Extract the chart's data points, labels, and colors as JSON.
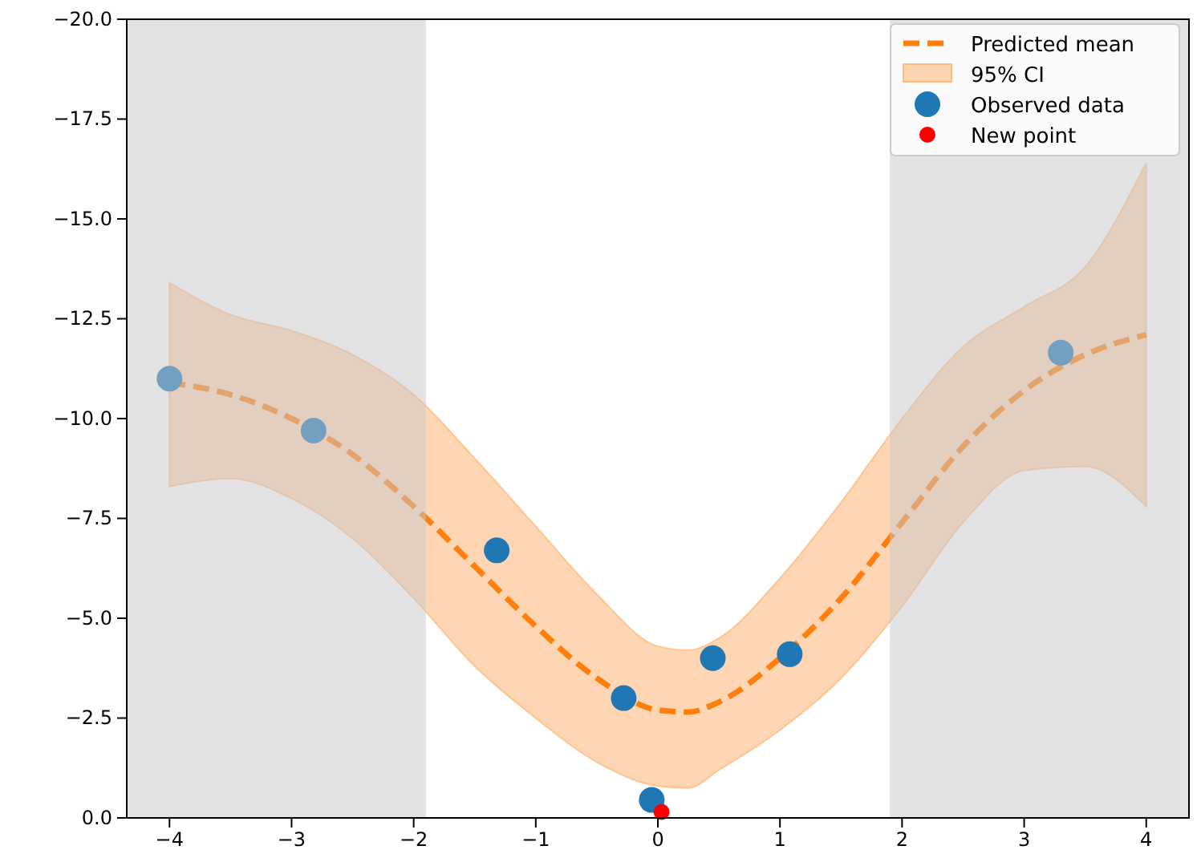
{
  "chart_data": {
    "type": "line",
    "xlim": [
      -4.35,
      4.35
    ],
    "ylim": [
      0,
      -20
    ],
    "xticks": [
      {
        "value": -4,
        "label": "−4"
      },
      {
        "value": -3,
        "label": "−3"
      },
      {
        "value": -2,
        "label": "−2"
      },
      {
        "value": -1,
        "label": "−1"
      },
      0,
      1,
      2,
      3,
      4
    ],
    "yticks": [
      {
        "value": 0,
        "label": "0.0"
      },
      {
        "value": -2.5,
        "label": "−2.5"
      },
      {
        "value": -5,
        "label": "−5.0"
      },
      {
        "value": -7.5,
        "label": "−7.5"
      },
      {
        "value": -10,
        "label": "−10.0"
      },
      {
        "value": -12.5,
        "label": "−12.5"
      },
      {
        "value": -15,
        "label": "−15.0"
      },
      {
        "value": -17.5,
        "label": "−17.5"
      },
      {
        "value": -20,
        "label": "−20.0"
      }
    ],
    "grid": false,
    "legend": "top right",
    "bands": [
      {
        "axis": "x",
        "from": -4.35,
        "to": -1.9,
        "color": "#c8c8cc"
      },
      {
        "axis": "x",
        "from": 1.9,
        "to": 4.35,
        "color": "#c8c8cc"
      }
    ],
    "series": [
      {
        "name": "Predicted mean",
        "color": "#ff7f0e",
        "line_style": "dashed",
        "marker": "none",
        "x": [
          -4,
          -3.5,
          -3,
          -2.5,
          -2,
          -1.5,
          -1,
          -0.5,
          0,
          0.25,
          0.5,
          1,
          1.5,
          2,
          2.5,
          3,
          3.5,
          4
        ],
        "values": [
          -10.9,
          -10.6,
          -10,
          -9.1,
          -7.8,
          -6.3,
          -4.8,
          -3.5,
          -2.7,
          -2.65,
          -2.9,
          -4,
          -5.5,
          -7.4,
          -9.3,
          -10.7,
          -11.6,
          -12.1
        ],
        "lower": [
          -8.3,
          -8.5,
          -8,
          -7,
          -5.5,
          -3.8,
          -2.5,
          -1.4,
          -0.8,
          -0.75,
          -1.2,
          -2.2,
          -3.5,
          -5.3,
          -7.4,
          -8.7,
          -8.8,
          -7.8
        ],
        "upper": [
          -13.4,
          -12.6,
          -12.2,
          -11.6,
          -10.6,
          -9,
          -7.3,
          -5.6,
          -4.3,
          -4.2,
          -4.5,
          -6,
          -7.9,
          -10,
          -11.8,
          -12.8,
          -13.8,
          -16.4
        ]
      },
      {
        "type": "area",
        "name": "95% CI",
        "color": "#ffbb80"
      },
      {
        "type": "scatter",
        "name": "Observed data",
        "color": "#1f77b4",
        "marker": "circle",
        "x": [
          -4,
          -2.82,
          -1.32,
          -0.28,
          -0.05,
          0.45,
          1.08,
          3.3
        ],
        "values": [
          -11,
          -9.7,
          -6.7,
          -3,
          -0.45,
          -4,
          -4.1,
          -11.65
        ]
      },
      {
        "type": "scatter",
        "name": "New point",
        "color": "#ff0000",
        "marker": "circle",
        "x": [
          0.03
        ],
        "values": [
          -0.15
        ]
      }
    ]
  }
}
